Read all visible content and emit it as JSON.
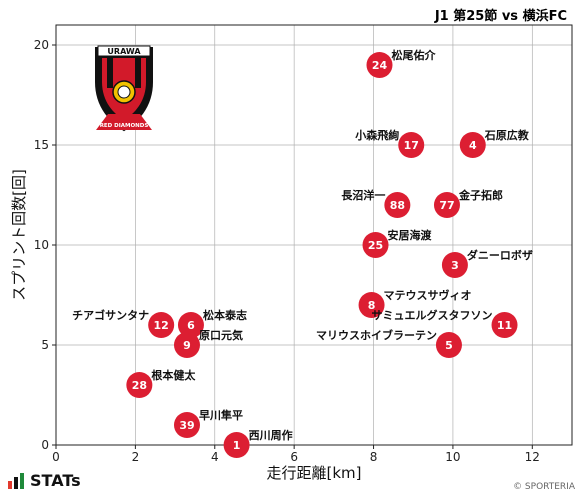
{
  "header": {
    "title": "J1 第25節 vs 横浜FC"
  },
  "footer": {
    "brand": "STATs",
    "credit": "© SPORTERIA"
  },
  "crest": {
    "top_text": "URAWA",
    "bottom_text": "RED DIAMONDS"
  },
  "colors": {
    "point": "#dc1e32",
    "grid": "#b0b0b0",
    "crest_red": "#d21a2a",
    "crest_black": "#111111",
    "crest_yellow": "#f2c200"
  },
  "chart_data": {
    "type": "scatter",
    "title": "J1 第25節 vs 横浜FC",
    "xlabel": "走行距離[km]",
    "ylabel": "スプリント回数[回]",
    "xlim": [
      0,
      13
    ],
    "ylim": [
      0,
      21
    ],
    "xticks": [
      "0",
      "2",
      "4",
      "6",
      "8",
      "10",
      "12"
    ],
    "yticks": [
      "0",
      "5",
      "10",
      "15",
      "20"
    ],
    "grid": true,
    "points": [
      {
        "num": "24",
        "name": "松尾佑介",
        "x": 8.15,
        "y": 19,
        "side": "right"
      },
      {
        "num": "17",
        "name": "小森飛絢",
        "x": 8.95,
        "y": 15,
        "side": "left"
      },
      {
        "num": "4",
        "name": "石原広教",
        "x": 10.5,
        "y": 15,
        "side": "right"
      },
      {
        "num": "88",
        "name": "長沼洋一",
        "x": 8.6,
        "y": 12,
        "side": "left"
      },
      {
        "num": "77",
        "name": "金子拓郎",
        "x": 9.85,
        "y": 12,
        "side": "right"
      },
      {
        "num": "25",
        "name": "安居海渡",
        "x": 8.05,
        "y": 10,
        "side": "right"
      },
      {
        "num": "3",
        "name": "ダニーロボザ",
        "x": 10.05,
        "y": 9,
        "side": "right"
      },
      {
        "num": "8",
        "name": "マテウスサヴィオ",
        "x": 7.95,
        "y": 7,
        "side": "right"
      },
      {
        "num": "11",
        "name": "サミュエルグスタフソン",
        "x": 11.3,
        "y": 6,
        "side": "left"
      },
      {
        "num": "5",
        "name": "マリウスホイブラーテン",
        "x": 9.9,
        "y": 5,
        "side": "left"
      },
      {
        "num": "12",
        "name": "チアゴサンタナ",
        "x": 2.65,
        "y": 6,
        "side": "left"
      },
      {
        "num": "6",
        "name": "松本泰志",
        "x": 3.4,
        "y": 6,
        "side": "right"
      },
      {
        "num": "9",
        "name": "原口元気",
        "x": 3.3,
        "y": 5,
        "side": "right"
      },
      {
        "num": "28",
        "name": "根本健太",
        "x": 2.1,
        "y": 3,
        "side": "right"
      },
      {
        "num": "39",
        "name": "早川隼平",
        "x": 3.3,
        "y": 1,
        "side": "right"
      },
      {
        "num": "1",
        "name": "西川周作",
        "x": 4.55,
        "y": 0,
        "side": "right"
      }
    ]
  }
}
